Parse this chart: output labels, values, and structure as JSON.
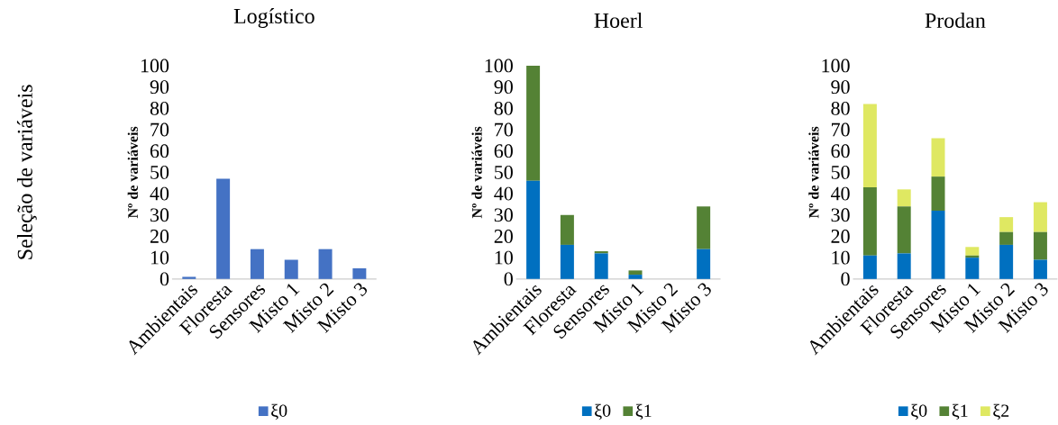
{
  "chart_data": [
    {
      "type": "bar",
      "title": "Logístico",
      "ylabel": "Nº de variáveis",
      "annotations": [
        "Seleção de variáveis"
      ],
      "categories": [
        "Ambientais",
        "Floresta",
        "Sensores",
        "Misto 1",
        "Misto 2",
        "Misto 3"
      ],
      "ylim": [
        0,
        100
      ],
      "yticks": [
        0,
        10,
        20,
        30,
        40,
        50,
        60,
        70,
        80,
        90,
        100
      ],
      "legend": "bottom",
      "series": [
        {
          "name": "ξ0",
          "color": "#4472c4",
          "values": [
            1,
            47,
            14,
            9,
            14,
            5
          ]
        }
      ]
    },
    {
      "type": "bar",
      "title": "Hoerl",
      "ylabel": "Nº de variáveis",
      "categories": [
        "Ambientais",
        "Floresta",
        "Sensores",
        "Misto 1",
        "Misto 2",
        "Misto 3"
      ],
      "ylim": [
        0,
        100
      ],
      "yticks": [
        0,
        10,
        20,
        30,
        40,
        50,
        60,
        70,
        80,
        90,
        100
      ],
      "legend": "bottom",
      "stacked": true,
      "series": [
        {
          "name": "ξ0",
          "color": "#0070c0",
          "values": [
            46,
            16,
            12,
            2,
            0,
            14
          ]
        },
        {
          "name": "ξ1",
          "color": "#548235",
          "values": [
            54,
            14,
            1,
            2,
            0,
            20
          ]
        }
      ]
    },
    {
      "type": "bar",
      "title": "Prodan",
      "ylabel": "Nº de variáveis",
      "categories": [
        "Ambientais",
        "Floresta",
        "Sensores",
        "Misto 1",
        "Misto 2",
        "Misto 3"
      ],
      "ylim": [
        0,
        100
      ],
      "yticks": [
        0,
        10,
        20,
        30,
        40,
        50,
        60,
        70,
        80,
        90,
        100
      ],
      "legend": "bottom",
      "stacked": true,
      "series": [
        {
          "name": "ξ0",
          "color": "#0070c0",
          "values": [
            11,
            12,
            32,
            10,
            16,
            9
          ]
        },
        {
          "name": "ξ1",
          "color": "#548235",
          "values": [
            32,
            22,
            16,
            1,
            6,
            13
          ]
        },
        {
          "name": "ξ2",
          "color": "#dfe862",
          "values": [
            39,
            8,
            18,
            4,
            7,
            14
          ]
        }
      ]
    }
  ]
}
